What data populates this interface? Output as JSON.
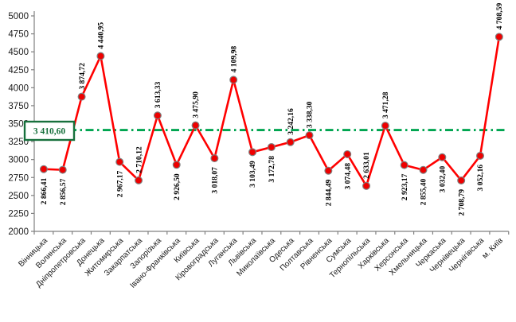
{
  "chart_data": {
    "type": "line",
    "title": "",
    "categories": [
      "Вінницька",
      "Волинська",
      "Дніпропетровська",
      "Донецька",
      "Житомирська",
      "Закарпатська",
      "Запорізька",
      "Івано-Франківська",
      "Київська",
      "Кіровоградська",
      "Луганська",
      "Львівська",
      "Миколаївська",
      "Одеська",
      "Полтавська",
      "Рівненська",
      "Сумська",
      "Тернопільська",
      "Харківська",
      "Херсонська",
      "Хмельницька",
      "Черкаська",
      "Чернівецька",
      "Чернігівська",
      "м. Київ"
    ],
    "series": [
      {
        "name": "",
        "values": [
          2866.41,
          2856.57,
          3874.72,
          4440.95,
          2967.17,
          2710.12,
          3613.33,
          2926.5,
          3475.9,
          3018.07,
          4109.98,
          3103.49,
          3172.78,
          3242.16,
          3338.3,
          2844.49,
          3074.48,
          2633.01,
          3471.28,
          2923.17,
          2855.4,
          3032.4,
          2708.79,
          3052.16,
          4708.59
        ],
        "point_labels": [
          "2 866,41",
          "2 856,57",
          "3 874,72",
          "4 440,95",
          "2 967,17",
          "2 710,12",
          "3 613,33",
          "2 926,50",
          "3 475,90",
          "3 018,07",
          "4 109,98",
          "3 103,49",
          "3 172,78",
          "3 242,16",
          "3 338,30",
          "2 844,49",
          "3 074,48",
          "2 633,01",
          "3 471,28",
          "2 923,17",
          "2 855,40",
          "3 032,40",
          "2 708,79",
          "3 052,16",
          "4 708,59"
        ],
        "label_positions": [
          "below",
          "below",
          "above",
          "above",
          "below",
          "above",
          "above",
          "below",
          "above",
          "below",
          "above",
          "below",
          "below",
          "above",
          "above",
          "below",
          "below",
          "above",
          "above",
          "below",
          "below",
          "below",
          "below",
          "below",
          "above"
        ]
      }
    ],
    "average_line": {
      "value": 3410.6,
      "label": "3 410,60",
      "style": "dash-dot"
    },
    "y_axis": {
      "min": 2000,
      "max": 5000,
      "ticks": [
        2000,
        2250,
        2500,
        2750,
        3000,
        3250,
        3500,
        3750,
        4000,
        4250,
        4500,
        4750,
        5000
      ]
    },
    "xlabel": "",
    "ylabel": "",
    "legend": {
      "visible": false
    },
    "grid": false,
    "colors": {
      "series_line": "#ff0000",
      "marker_fill": "#ee0000",
      "marker_stroke": "#7f7f7f",
      "average_line": "#00a550",
      "average_box_border": "#17703c",
      "average_text": "#17703c",
      "axis_line": "#808080",
      "tick_text": "#1a1a1a",
      "data_label_text": "#000000"
    }
  }
}
